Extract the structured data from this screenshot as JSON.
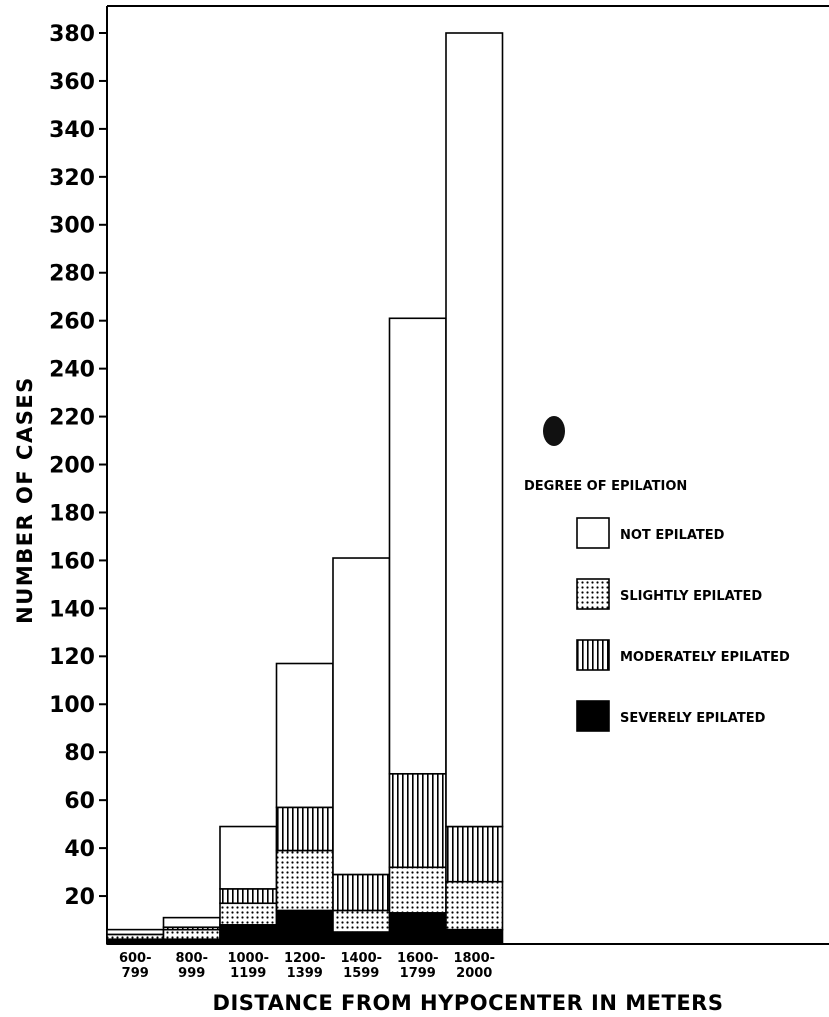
{
  "chart_data": {
    "type": "bar",
    "stacked": true,
    "categories": [
      "600-799",
      "800-999",
      "1000-1199",
      "1200-1399",
      "1400-1599",
      "1600-1799",
      "1800-2000"
    ],
    "category_lines": [
      [
        "600-",
        "799"
      ],
      [
        "800-",
        "999"
      ],
      [
        "1000-",
        "1199"
      ],
      [
        "1200-",
        "1399"
      ],
      [
        "1400-",
        "1599"
      ],
      [
        "1600-",
        "1799"
      ],
      [
        "1800-",
        "2000"
      ]
    ],
    "series": [
      {
        "name": "SEVERELY EPILATED",
        "pattern": "solid",
        "values": [
          2,
          2,
          8,
          14,
          5,
          13,
          6
        ]
      },
      {
        "name": "SLIGHTLY EPILATED",
        "pattern": "dots",
        "values": [
          2,
          4,
          9,
          25,
          9,
          19,
          20
        ]
      },
      {
        "name": "MODERATELY EPILATED",
        "pattern": "vertical-lines",
        "values": [
          0,
          1,
          6,
          18,
          15,
          39,
          23
        ]
      },
      {
        "name": "NOT EPILATED",
        "pattern": "white",
        "values": [
          2,
          4,
          26,
          60,
          132,
          190,
          331
        ]
      }
    ],
    "totals": [
      6,
      11,
      49,
      117,
      161,
      261,
      380
    ],
    "legend_order": [
      "NOT EPILATED",
      "SLIGHTLY EPILATED",
      "MODERATELY EPILATED",
      "SEVERELY EPILATED"
    ],
    "legend_title": "DEGREE OF EPILATION",
    "legend_position": "right",
    "xlabel": "DISTANCE FROM HYPOCENTER IN METERS",
    "ylabel": "NUMBER OF CASES",
    "ylim": [
      0,
      380
    ],
    "yticks": [
      20,
      40,
      60,
      80,
      100,
      120,
      140,
      160,
      180,
      200,
      220,
      240,
      260,
      280,
      300,
      320,
      340,
      360,
      380
    ],
    "grid": false
  }
}
